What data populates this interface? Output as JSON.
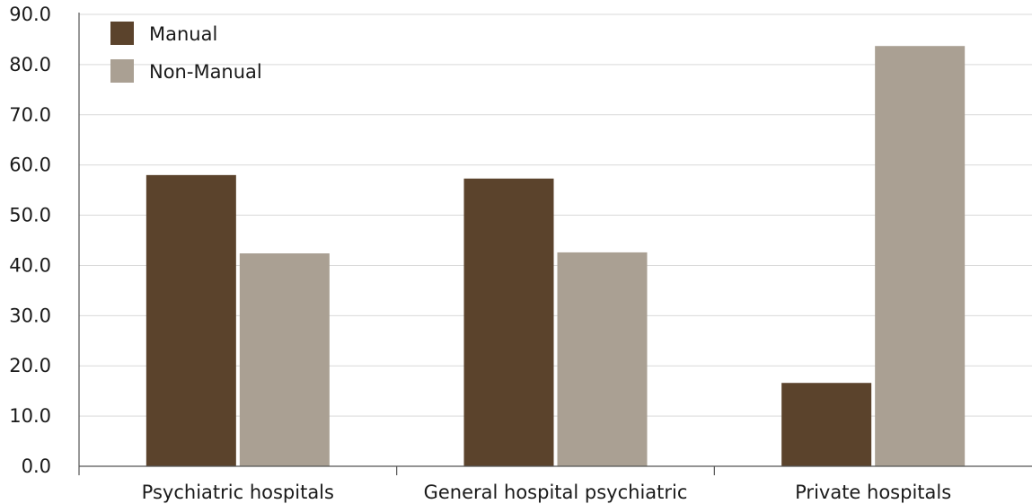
{
  "chart_data": {
    "type": "bar",
    "title": "",
    "xlabel": "",
    "ylabel": "",
    "ylim": [
      0,
      90
    ],
    "yticks": [
      "0.0",
      "10.0",
      "20.0",
      "30.0",
      "40.0",
      "50.0",
      "60.0",
      "70.0",
      "80.0",
      "90.0"
    ],
    "grid": true,
    "legend_position": "top-left",
    "categories": [
      "Psychiatric hospitals",
      "General hospital psychiatric",
      "Private hospitals"
    ],
    "series": [
      {
        "name": "Manual",
        "color": "#5b432c",
        "values": [
          58.0,
          57.3,
          16.6
        ]
      },
      {
        "name": "Non-Manual",
        "color": "#aaa093",
        "values": [
          42.4,
          42.6,
          83.7
        ]
      }
    ]
  }
}
